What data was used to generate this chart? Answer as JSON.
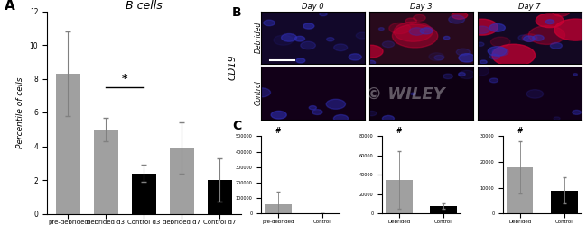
{
  "panel_A": {
    "title": "B cells",
    "ylabel": "Percentile of cells",
    "categories": [
      "pre-debrided\nd0",
      "debrided d3",
      "Control d3",
      "debrided d7",
      "Control d7"
    ],
    "values": [
      8.3,
      5.0,
      2.4,
      3.9,
      2.0
    ],
    "errors": [
      2.5,
      0.7,
      0.5,
      1.5,
      1.3
    ],
    "colors": [
      "#a0a0a0",
      "#a0a0a0",
      "#000000",
      "#a0a0a0",
      "#000000"
    ],
    "ylim": [
      0,
      12
    ],
    "yticks": [
      0,
      2,
      4,
      6,
      8,
      10,
      12
    ]
  },
  "panel_B": {
    "col_labels": [
      "Day 0",
      "Day 3",
      "Day 7"
    ],
    "row_labels": [
      "Debrided",
      "Control"
    ]
  },
  "panel_C": {
    "subpanels": [
      {
        "categories": [
          "pre-debrided",
          "Control"
        ],
        "values": [
          60000,
          2000
        ],
        "errors": [
          80000,
          500
        ],
        "ylim": [
          0,
          500000
        ],
        "ytick_labels": [
          "0",
          "100000",
          "200000",
          "300000",
          "400000",
          "500000"
        ],
        "yticks": [
          0,
          100000,
          200000,
          300000,
          400000,
          500000
        ],
        "colors": [
          "#a0a0a0",
          "#000000"
        ],
        "star": true
      },
      {
        "categories": [
          "Debrided",
          "Control"
        ],
        "values": [
          35000,
          8000
        ],
        "errors": [
          30000,
          3000
        ],
        "ylim": [
          0,
          80000
        ],
        "ytick_labels": [
          "0",
          "20000",
          "40000",
          "60000",
          "80000"
        ],
        "yticks": [
          0,
          20000,
          40000,
          60000,
          80000
        ],
        "colors": [
          "#a0a0a0",
          "#000000"
        ],
        "star": true
      },
      {
        "categories": [
          "Debrided",
          "Control"
        ],
        "values": [
          18000,
          9000
        ],
        "errors": [
          10000,
          5000
        ],
        "ylim": [
          0,
          30000
        ],
        "ytick_labels": [
          "0",
          "10000",
          "20000",
          "30000"
        ],
        "yticks": [
          0,
          10000,
          20000,
          30000
        ],
        "colors": [
          "#a0a0a0",
          "#000000"
        ],
        "star": true
      }
    ]
  }
}
